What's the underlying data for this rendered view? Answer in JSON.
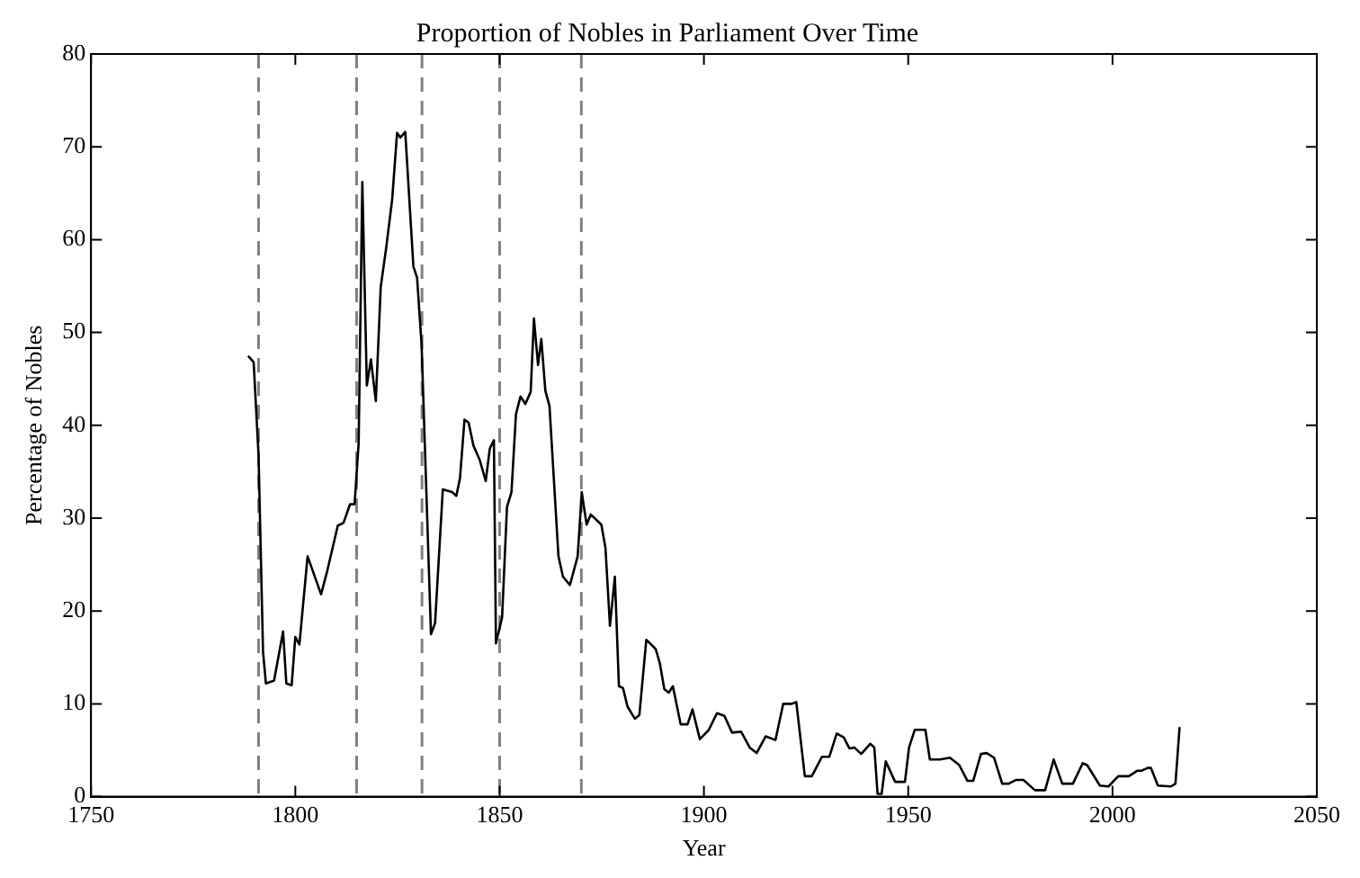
{
  "chart_data": {
    "type": "line",
    "title": "Proportion of Nobles in Parliament Over Time",
    "xlabel": "Year",
    "ylabel": "Percentage of Nobles",
    "series": [
      {
        "color": "#000000",
        "x": [
          1788.6,
          1789.8,
          1791,
          1792.1,
          1792.8,
          1794.8,
          1797,
          1797.8,
          1799.1,
          1800,
          1801,
          1803,
          1806.3,
          1807.8,
          1810.4,
          1811.8,
          1813.4,
          1814.5,
          1815.5,
          1816.4,
          1817.5,
          1818.5,
          1819.7,
          1820.9,
          1822.2,
          1823.7,
          1824.9,
          1825.7,
          1826.9,
          1828.9,
          1829.8,
          1830.9,
          1833.2,
          1834.2,
          1836.1,
          1838.4,
          1839.4,
          1840.3,
          1841.4,
          1842.4,
          1843.6,
          1845.1,
          1846.6,
          1847.6,
          1848.6,
          1849.1,
          1850.6,
          1851.8,
          1852.9,
          1854,
          1855.1,
          1856.3,
          1857.6,
          1858.4,
          1859.4,
          1860.2,
          1861.2,
          1862.2,
          1864.4,
          1865.5,
          1867.2,
          1869.1,
          1870.1,
          1871.3,
          1872.3,
          1874.9,
          1875.9,
          1877,
          1878.2,
          1879.2,
          1880.2,
          1881.3,
          1883.1,
          1884.2,
          1885.9,
          1888.2,
          1889.2,
          1890.3,
          1891.4,
          1892.4,
          1894.3,
          1896,
          1897.2,
          1899,
          1901.2,
          1903.2,
          1905,
          1906.9,
          1909.1,
          1911.2,
          1912.9,
          1915.1,
          1917.5,
          1919.4,
          1921.5,
          1922.6,
          1924.7,
          1926.4,
          1928.9,
          1930.7,
          1932.5,
          1934.2,
          1935.6,
          1936.8,
          1938.5,
          1940.7,
          1941.7,
          1942.5,
          1943.5,
          1944.5,
          1946.8,
          1949.2,
          1950.2,
          1951.6,
          1954.2,
          1955.3,
          1957.8,
          1960.2,
          1962.5,
          1964.5,
          1965.9,
          1967.8,
          1969.2,
          1971,
          1973,
          1974.6,
          1976.3,
          1978.2,
          1981,
          1983.5,
          1985.6,
          1987.7,
          1990.3,
          1992.7,
          1993.8,
          1996.9,
          1999,
          2001.4,
          2004,
          2006.1,
          2007.1,
          2008.6,
          2009.4,
          2011.1,
          2014.3,
          2015.4,
          2016.4
        ],
        "values": [
          47.4,
          46.8,
          36.8,
          15.6,
          12.2,
          12.5,
          17.8,
          12.2,
          12,
          17.2,
          16.4,
          25.9,
          21.8,
          24.3,
          29.2,
          29.5,
          31.5,
          31.5,
          38.1,
          66.2,
          44.3,
          47.1,
          42.6,
          54.9,
          59,
          64.3,
          71.5,
          71,
          71.6,
          57.1,
          55.9,
          48.7,
          17.5,
          18.7,
          33.1,
          32.8,
          32.4,
          34.3,
          40.6,
          40.3,
          37.8,
          36.3,
          34,
          37.5,
          38.4,
          16.5,
          19.3,
          31.2,
          32.8,
          41.2,
          43.1,
          42.3,
          43.6,
          51.5,
          46.5,
          49.3,
          43.7,
          42.1,
          25.9,
          23.7,
          22.8,
          25.9,
          32.8,
          29.3,
          30.4,
          29.3,
          26.8,
          18.4,
          23.7,
          11.9,
          11.7,
          9.7,
          8.4,
          8.8,
          16.9,
          15.9,
          14.4,
          11.6,
          11.2,
          11.9,
          7.8,
          7.8,
          9.4,
          6.2,
          7.2,
          9,
          8.7,
          6.9,
          7,
          5.3,
          4.7,
          6.5,
          6.1,
          10,
          10,
          10.2,
          2.2,
          2.2,
          4.3,
          4.3,
          6.8,
          6.4,
          5.2,
          5.3,
          4.6,
          5.7,
          5.3,
          0.3,
          0.3,
          3.8,
          1.6,
          1.6,
          5.3,
          7.2,
          7.2,
          4,
          4,
          4.2,
          3.4,
          1.7,
          1.7,
          4.6,
          4.7,
          4.2,
          1.4,
          1.4,
          1.8,
          1.8,
          0.7,
          0.7,
          4,
          1.4,
          1.4,
          3.6,
          3.4,
          1.2,
          1.1,
          2.2,
          2.2,
          2.8,
          2.8,
          3.1,
          3.1,
          1.2,
          1.1,
          1.4,
          7.4
        ]
      }
    ],
    "xlim": [
      1750,
      2050
    ],
    "xticks": [
      1750,
      1800,
      1850,
      1900,
      1950,
      2000,
      2050
    ],
    "ylim": [
      0,
      80
    ],
    "yticks": [
      0,
      10,
      20,
      30,
      40,
      50,
      60,
      70,
      80
    ],
    "grid": false,
    "legend": false,
    "marker": "none",
    "line_style": "solid",
    "ref_lines": [
      {
        "axis": "x",
        "value": 1791,
        "color": "#808080",
        "line_style": "dashed"
      },
      {
        "axis": "x",
        "value": 1815,
        "color": "#808080",
        "line_style": "dashed"
      },
      {
        "axis": "x",
        "value": 1831,
        "color": "#808080",
        "line_style": "dashed"
      },
      {
        "axis": "x",
        "value": 1850,
        "color": "#808080",
        "line_style": "dashed"
      },
      {
        "axis": "x",
        "value": 1870,
        "color": "#808080",
        "line_style": "dashed"
      }
    ]
  }
}
